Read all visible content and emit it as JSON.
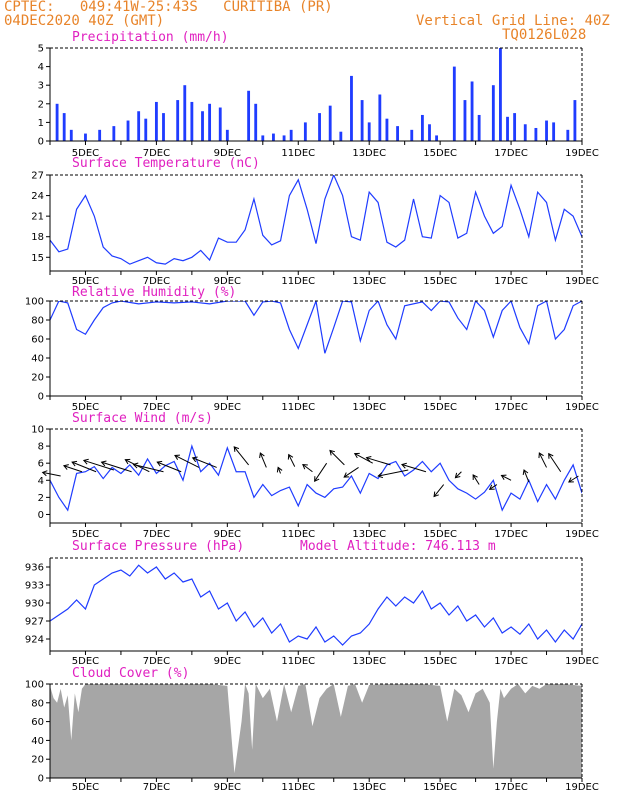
{
  "header": {
    "station": "CPTEC:   049:41W-25:43S   CURITIBA (PR)",
    "init_time": "04DEC2020 40Z (GMT)",
    "grid_note": "Vertical Grid Line: 40Z",
    "model_code": "TQ0126L028"
  },
  "x_axis": {
    "tick_labels": [
      "5DEC",
      "7DEC",
      "9DEC",
      "11DEC",
      "13DEC",
      "15DEC",
      "17DEC",
      "19DEC"
    ],
    "range_days": [
      4,
      19
    ]
  },
  "colors": {
    "series": "#1f3cff",
    "precip": "#1f3cff",
    "cloud": "#a6a6a6",
    "title": "#e020c0",
    "header": "#e8842a"
  },
  "chart_data": [
    {
      "type": "bar",
      "title": "Precipitation (mm/h)",
      "ylim": [
        0,
        5
      ],
      "yticks": [
        0,
        1,
        2,
        3,
        4,
        5
      ],
      "ytick_labels": [
        "0",
        "1",
        "2",
        "3",
        "4",
        "5"
      ],
      "x": [
        4.2,
        4.4,
        4.6,
        5.0,
        5.4,
        5.8,
        6.2,
        6.5,
        6.7,
        7.0,
        7.2,
        7.6,
        7.8,
        8.0,
        8.3,
        8.5,
        8.8,
        9.0,
        9.6,
        9.8,
        10.0,
        10.3,
        10.6,
        10.8,
        11.2,
        11.6,
        11.9,
        12.2,
        12.5,
        12.8,
        13.0,
        13.3,
        13.5,
        13.8,
        14.2,
        14.5,
        14.7,
        14.9,
        15.4,
        15.7,
        15.9,
        16.1,
        16.5,
        16.7,
        16.9,
        17.1,
        17.4,
        17.7,
        18.0,
        18.2,
        18.6,
        18.8
      ],
      "y": [
        2.0,
        1.5,
        0.6,
        0.4,
        0.6,
        0.8,
        1.1,
        1.6,
        1.2,
        2.1,
        1.5,
        2.2,
        3.0,
        2.1,
        1.6,
        2.0,
        1.8,
        0.6,
        2.7,
        2.0,
        0.3,
        0.4,
        0.3,
        0.6,
        1.0,
        1.5,
        1.9,
        0.5,
        3.5,
        2.2,
        1.0,
        2.5,
        1.2,
        0.8,
        0.6,
        1.4,
        0.9,
        0.3,
        4.0,
        2.2,
        3.2,
        1.4,
        3.0,
        5.0,
        1.3,
        1.5,
        0.9,
        0.7,
        1.1,
        1.0,
        0.6,
        2.2
      ]
    },
    {
      "type": "line",
      "title": "Surface Temperature (nC)",
      "ylim": [
        13,
        27
      ],
      "yticks": [
        15,
        18,
        21,
        24,
        27
      ],
      "ytick_labels": [
        "15",
        "18",
        "21",
        "24",
        "27"
      ],
      "x": [
        4.0,
        4.25,
        4.5,
        4.75,
        5.0,
        5.25,
        5.5,
        5.75,
        6.0,
        6.25,
        6.5,
        6.75,
        7.0,
        7.25,
        7.5,
        7.75,
        8.0,
        8.25,
        8.5,
        8.75,
        9.0,
        9.25,
        9.5,
        9.75,
        10.0,
        10.25,
        10.5,
        10.75,
        11.0,
        11.25,
        11.5,
        11.75,
        12.0,
        12.25,
        12.5,
        12.75,
        13.0,
        13.25,
        13.5,
        13.75,
        14.0,
        14.25,
        14.5,
        14.75,
        15.0,
        15.25,
        15.5,
        15.75,
        16.0,
        16.25,
        16.5,
        16.75,
        17.0,
        17.25,
        17.5,
        17.75,
        18.0,
        18.25,
        18.5,
        18.75,
        19.0
      ],
      "y": [
        17.5,
        15.8,
        16.2,
        22.0,
        24.0,
        21.0,
        16.5,
        15.2,
        14.8,
        14.0,
        14.5,
        15.0,
        14.2,
        14.0,
        14.8,
        14.5,
        15.0,
        16.0,
        14.6,
        17.8,
        17.2,
        17.2,
        19.0,
        23.5,
        18.2,
        16.8,
        17.4,
        24.0,
        26.3,
        22.0,
        17.0,
        23.5,
        27.0,
        24.0,
        18.0,
        17.5,
        24.5,
        23.0,
        17.2,
        16.5,
        17.5,
        23.5,
        18.0,
        17.8,
        24.0,
        23.0,
        17.8,
        18.5,
        24.5,
        21.0,
        18.5,
        19.5,
        25.5,
        22.0,
        18.0,
        24.5,
        23.0,
        17.5,
        22.0,
        21.0,
        18.0
      ]
    },
    {
      "type": "line",
      "title": "Relative Humidity (%)",
      "ylim": [
        0,
        100
      ],
      "yticks": [
        0,
        20,
        40,
        60,
        80,
        100
      ],
      "ytick_labels": [
        "0",
        "20",
        "40",
        "60",
        "80",
        "100"
      ],
      "x": [
        4.0,
        4.25,
        4.5,
        4.75,
        5.0,
        5.25,
        5.5,
        5.75,
        6.0,
        6.5,
        7.0,
        7.5,
        8.0,
        8.5,
        9.0,
        9.5,
        9.75,
        10.0,
        10.25,
        10.5,
        10.75,
        11.0,
        11.25,
        11.5,
        11.75,
        12.0,
        12.25,
        12.5,
        12.75,
        13.0,
        13.25,
        13.5,
        13.75,
        14.0,
        14.5,
        14.75,
        15.0,
        15.25,
        15.5,
        15.75,
        16.0,
        16.25,
        16.5,
        16.75,
        17.0,
        17.25,
        17.5,
        17.75,
        18.0,
        18.25,
        18.5,
        18.75,
        19.0
      ],
      "y": [
        80,
        100,
        98,
        70,
        65,
        80,
        93,
        98,
        100,
        97,
        99,
        98,
        99,
        97,
        100,
        100,
        85,
        99,
        100,
        98,
        70,
        50,
        75,
        100,
        45,
        72,
        100,
        99,
        58,
        90,
        100,
        75,
        60,
        95,
        99,
        90,
        100,
        99,
        82,
        70,
        100,
        90,
        62,
        90,
        100,
        72,
        55,
        95,
        100,
        60,
        70,
        95,
        100
      ]
    },
    {
      "type": "line",
      "title": "Surface Wind (m/s)",
      "ylim": [
        -1,
        10
      ],
      "yticks": [
        0,
        2,
        4,
        6,
        8,
        10
      ],
      "ytick_labels": [
        "0",
        "2",
        "4",
        "6",
        "8",
        "10"
      ],
      "x": [
        4.0,
        4.25,
        4.5,
        4.75,
        5.0,
        5.25,
        5.5,
        5.75,
        6.0,
        6.25,
        6.5,
        6.75,
        7.0,
        7.25,
        7.5,
        7.75,
        8.0,
        8.25,
        8.5,
        8.75,
        9.0,
        9.25,
        9.5,
        9.75,
        10.0,
        10.25,
        10.5,
        10.75,
        11.0,
        11.25,
        11.5,
        11.75,
        12.0,
        12.25,
        12.5,
        12.75,
        13.0,
        13.25,
        13.5,
        13.75,
        14.0,
        14.25,
        14.5,
        14.75,
        15.0,
        15.25,
        15.5,
        15.75,
        16.0,
        16.25,
        16.5,
        16.75,
        17.0,
        17.25,
        17.5,
        17.75,
        18.0,
        18.25,
        18.5,
        18.75,
        19.0
      ],
      "y": [
        4.0,
        2.0,
        0.5,
        4.8,
        5.0,
        5.6,
        4.2,
        5.5,
        4.8,
        5.8,
        4.6,
        6.5,
        4.8,
        5.7,
        6.2,
        4.0,
        8.0,
        5.0,
        6.0,
        4.6,
        7.8,
        5.0,
        5.0,
        2.0,
        3.5,
        2.2,
        2.8,
        3.2,
        1.0,
        3.5,
        2.5,
        2.0,
        3.0,
        3.2,
        4.5,
        2.5,
        4.8,
        4.2,
        5.8,
        6.2,
        4.5,
        5.2,
        6.2,
        5.0,
        6.0,
        4.0,
        3.0,
        2.5,
        1.8,
        2.6,
        4.0,
        0.5,
        2.5,
        1.8,
        4.0,
        1.5,
        3.5,
        1.8,
        4.0,
        5.8,
        2.5
      ]
    },
    {
      "type": "line",
      "title": "Surface Pressure (hPa)",
      "annotation": "Model Altitude: 746.113 m",
      "ylim": [
        922,
        937.5
      ],
      "yticks": [
        924,
        927,
        930,
        933,
        936
      ],
      "ytick_labels": [
        "924",
        "927",
        "930",
        "933",
        "936"
      ],
      "x": [
        4.0,
        4.25,
        4.5,
        4.75,
        5.0,
        5.25,
        5.5,
        5.75,
        6.0,
        6.25,
        6.5,
        6.75,
        7.0,
        7.25,
        7.5,
        7.75,
        8.0,
        8.25,
        8.5,
        8.75,
        9.0,
        9.25,
        9.5,
        9.75,
        10.0,
        10.25,
        10.5,
        10.75,
        11.0,
        11.25,
        11.5,
        11.75,
        12.0,
        12.25,
        12.5,
        12.75,
        13.0,
        13.25,
        13.5,
        13.75,
        14.0,
        14.25,
        14.5,
        14.75,
        15.0,
        15.25,
        15.5,
        15.75,
        16.0,
        16.25,
        16.5,
        16.75,
        17.0,
        17.25,
        17.5,
        17.75,
        18.0,
        18.25,
        18.5,
        18.75,
        19.0
      ],
      "y": [
        927,
        928,
        929,
        930.5,
        929,
        933,
        934,
        935,
        935.5,
        934.5,
        936.3,
        935,
        936,
        934,
        935,
        933.5,
        934,
        931,
        932,
        929,
        930,
        927,
        928.5,
        926,
        927.5,
        925,
        926.5,
        923.5,
        924.5,
        924,
        926,
        923.5,
        924.5,
        923,
        924.5,
        925,
        926.5,
        929,
        931,
        929.5,
        931,
        930,
        932,
        929,
        930,
        928,
        929.5,
        927,
        928,
        926,
        927.5,
        925,
        926,
        924.8,
        926.5,
        924,
        925.5,
        923.5,
        925.5,
        924,
        926.5
      ]
    },
    {
      "type": "area",
      "title": "Cloud Cover (%)",
      "ylim": [
        0,
        100
      ],
      "yticks": [
        0,
        20,
        40,
        60,
        80,
        100
      ],
      "ytick_labels": [
        "0",
        "20",
        "40",
        "60",
        "80",
        "100"
      ],
      "x": [
        4.0,
        4.1,
        4.2,
        4.3,
        4.4,
        4.5,
        4.6,
        4.7,
        4.8,
        4.9,
        5.0,
        5.5,
        6.0,
        6.5,
        7.0,
        7.5,
        8.0,
        8.5,
        9.0,
        9.2,
        9.4,
        9.5,
        9.6,
        9.7,
        9.8,
        10.0,
        10.2,
        10.4,
        10.6,
        10.8,
        11.0,
        11.2,
        11.4,
        11.6,
        11.8,
        12.0,
        12.2,
        12.4,
        12.6,
        12.8,
        13.0,
        13.5,
        14.0,
        14.5,
        15.0,
        15.2,
        15.4,
        15.6,
        15.8,
        16.0,
        16.2,
        16.4,
        16.5,
        16.6,
        16.7,
        16.8,
        17.0,
        17.2,
        17.4,
        17.6,
        17.8,
        18.0,
        18.5,
        19.0
      ],
      "y": [
        98,
        85,
        80,
        95,
        75,
        88,
        40,
        90,
        70,
        95,
        100,
        100,
        100,
        100,
        100,
        100,
        100,
        100,
        98,
        5,
        60,
        100,
        90,
        30,
        100,
        85,
        95,
        60,
        100,
        70,
        98,
        100,
        55,
        85,
        95,
        100,
        65,
        98,
        100,
        80,
        99,
        100,
        100,
        100,
        98,
        60,
        95,
        88,
        70,
        90,
        95,
        80,
        10,
        60,
        95,
        85,
        95,
        100,
        90,
        98,
        95,
        100,
        100,
        98
      ]
    }
  ],
  "wind_barbs": {
    "description_units": "u/v components m/s",
    "x": [
      4.3,
      4.9,
      5.3,
      5.8,
      6.3,
      6.8,
      7.2,
      7.7,
      8.2,
      8.7,
      9.6,
      10.1,
      10.5,
      10.9,
      11.4,
      11.8,
      12.3,
      12.7,
      13.1,
      13.6,
      14.1,
      14.6,
      15.1,
      15.6,
      16.1,
      16.6,
      17.0,
      17.5,
      18.0,
      18.4,
      18.9
    ],
    "y": [
      4.5,
      5.0,
      5.0,
      5.2,
      5.0,
      5.0,
      5.0,
      5.0,
      5.5,
      5.5,
      5.8,
      5.5,
      4.8,
      5.6,
      5.0,
      6.0,
      5.8,
      5.5,
      6.0,
      5.8,
      5.2,
      5.0,
      3.5,
      5.0,
      3.5,
      3.5,
      4.0,
      3.8,
      5.5,
      5.0,
      4.5
    ],
    "u": [
      -1.5,
      -1.5,
      -2.0,
      -2.5,
      -2.5,
      -2.0,
      -2.5,
      -2.0,
      -2.0,
      -2.0,
      -1.2,
      -0.5,
      -0.2,
      -0.5,
      -0.8,
      -1.0,
      -1.2,
      -1.2,
      -1.5,
      -2.0,
      -2.5,
      -2.0,
      -0.8,
      -0.5,
      -0.5,
      -0.6,
      -0.8,
      -0.4,
      -0.6,
      -1.0,
      -0.8
    ],
    "v": [
      0.3,
      0.5,
      0.8,
      0.8,
      0.8,
      1.0,
      0.6,
      0.8,
      1.0,
      0.8,
      1.5,
      1.2,
      0.5,
      1.0,
      0.6,
      -1.5,
      1.2,
      -0.8,
      0.8,
      0.6,
      -0.5,
      0.6,
      -1.0,
      -0.5,
      0.8,
      -0.4,
      0.4,
      1.0,
      1.2,
      1.5,
      -0.5
    ]
  }
}
